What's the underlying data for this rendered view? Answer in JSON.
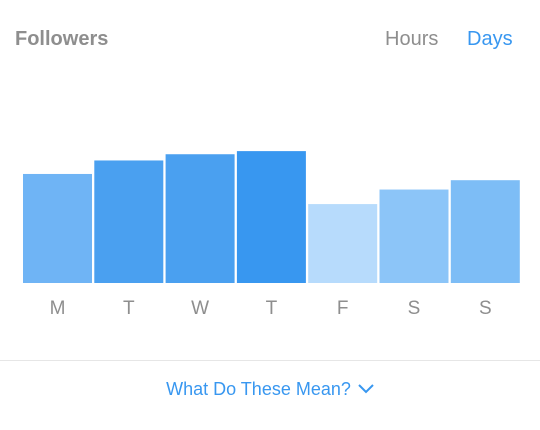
{
  "header": {
    "title": "Followers",
    "toggle_hours": "Hours",
    "toggle_days": "Days",
    "selected": "Days"
  },
  "chart_data": {
    "type": "bar",
    "categories": [
      "M",
      "T",
      "W",
      "T",
      "F",
      "S",
      "S"
    ],
    "values": [
      105,
      118,
      124,
      127,
      76,
      90,
      99
    ],
    "colors": [
      "#6fb4f5",
      "#4aa0f0",
      "#4aa0f0",
      "#3897f0",
      "#b7dbfc",
      "#8cc5f8",
      "#7dbdf6"
    ],
    "ylim": [
      0,
      130
    ]
  },
  "footer": {
    "link_label": "What Do These Mean?",
    "link_icon": "chevron-down-icon"
  },
  "colors": {
    "accent": "#3897f0",
    "muted_text": "#8e8e8e"
  }
}
